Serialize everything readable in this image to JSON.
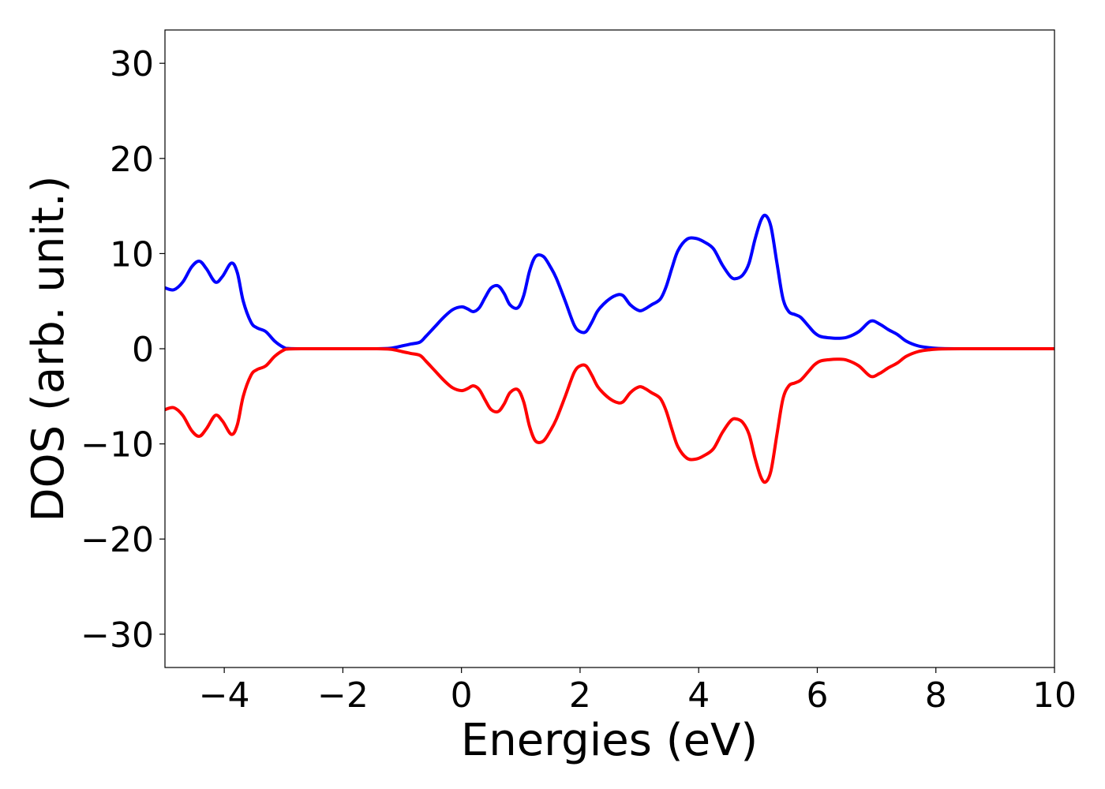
{
  "chart_data": {
    "type": "line",
    "title": "",
    "xlabel": "Energies (eV)",
    "ylabel": "DOS (arb. unit.)",
    "xlim": [
      -5,
      10
    ],
    "ylim": [
      -33.5,
      33.5
    ],
    "xticks": [
      -4,
      -2,
      0,
      2,
      4,
      6,
      8,
      10
    ],
    "xtick_labels": [
      "−4",
      "−2",
      "0",
      "2",
      "4",
      "6",
      "8",
      "10"
    ],
    "yticks": [
      30,
      20,
      10,
      0,
      -10,
      -20,
      -30
    ],
    "ytick_labels": [
      "30",
      "20",
      "10",
      "0",
      "−10",
      "−20",
      "−30"
    ],
    "grid": false,
    "legend": "none",
    "colors": {
      "spin_up": "#0000ff",
      "spin_down": "#ff0000",
      "axes": "#000000"
    },
    "series": [
      {
        "color": "#0000ff",
        "x": [
          -5.0,
          -4.85,
          -4.7,
          -4.55,
          -4.42,
          -4.3,
          -4.15,
          -4.03,
          -3.88,
          -3.78,
          -3.68,
          -3.55,
          -3.45,
          -3.3,
          -3.15,
          -3.0,
          -2.9,
          -2.5,
          -2.0,
          -1.5,
          -1.2,
          -1.0,
          -0.85,
          -0.7,
          -0.6,
          -0.45,
          -0.3,
          -0.15,
          0.0,
          0.1,
          0.2,
          0.3,
          0.4,
          0.5,
          0.62,
          0.72,
          0.82,
          0.95,
          1.05,
          1.15,
          1.25,
          1.38,
          1.5,
          1.6,
          1.75,
          1.9,
          2.0,
          2.1,
          2.2,
          2.3,
          2.45,
          2.6,
          2.72,
          2.85,
          3.0,
          3.1,
          3.2,
          3.35,
          3.45,
          3.55,
          3.65,
          3.8,
          3.95,
          4.1,
          4.25,
          4.4,
          4.55,
          4.65,
          4.75,
          4.85,
          4.95,
          5.05,
          5.13,
          5.22,
          5.32,
          5.42,
          5.52,
          5.62,
          5.72,
          5.85,
          5.95,
          6.05,
          6.2,
          6.35,
          6.5,
          6.7,
          6.9,
          7.05,
          7.2,
          7.35,
          7.5,
          7.7,
          7.9,
          8.1,
          8.5,
          9.0,
          9.5,
          10.0
        ],
        "y": [
          6.4,
          6.2,
          7.0,
          8.6,
          9.2,
          8.4,
          7.0,
          7.6,
          9.0,
          8.0,
          5.0,
          2.8,
          2.2,
          1.8,
          0.8,
          0.15,
          0.02,
          0.0,
          0.0,
          0.0,
          0.05,
          0.3,
          0.5,
          0.7,
          1.3,
          2.3,
          3.3,
          4.1,
          4.4,
          4.2,
          3.9,
          4.3,
          5.4,
          6.4,
          6.6,
          5.8,
          4.6,
          4.3,
          5.6,
          8.2,
          9.7,
          9.7,
          8.6,
          7.4,
          5.0,
          2.5,
          1.8,
          1.8,
          2.8,
          4.0,
          5.0,
          5.6,
          5.6,
          4.6,
          4.0,
          4.2,
          4.6,
          5.2,
          6.5,
          8.5,
          10.3,
          11.5,
          11.6,
          11.2,
          10.5,
          8.8,
          7.5,
          7.4,
          7.8,
          9.0,
          11.5,
          13.5,
          14.0,
          12.8,
          9.0,
          5.3,
          3.9,
          3.6,
          3.3,
          2.4,
          1.7,
          1.3,
          1.15,
          1.1,
          1.2,
          1.8,
          2.9,
          2.6,
          2.0,
          1.5,
          0.8,
          0.3,
          0.1,
          0.02,
          0.0,
          0.0,
          0.0,
          0.0
        ]
      },
      {
        "color": "#ff0000",
        "x": [
          -5.0,
          -4.85,
          -4.7,
          -4.55,
          -4.42,
          -4.3,
          -4.15,
          -4.03,
          -3.88,
          -3.78,
          -3.68,
          -3.55,
          -3.45,
          -3.3,
          -3.15,
          -3.0,
          -2.9,
          -2.5,
          -2.0,
          -1.5,
          -1.2,
          -1.0,
          -0.85,
          -0.7,
          -0.6,
          -0.45,
          -0.3,
          -0.15,
          0.0,
          0.1,
          0.2,
          0.3,
          0.4,
          0.5,
          0.62,
          0.72,
          0.82,
          0.95,
          1.05,
          1.15,
          1.25,
          1.38,
          1.5,
          1.6,
          1.75,
          1.9,
          2.0,
          2.1,
          2.2,
          2.3,
          2.45,
          2.6,
          2.72,
          2.85,
          3.0,
          3.1,
          3.2,
          3.35,
          3.45,
          3.55,
          3.65,
          3.8,
          3.95,
          4.1,
          4.25,
          4.4,
          4.55,
          4.65,
          4.75,
          4.85,
          4.95,
          5.05,
          5.13,
          5.22,
          5.32,
          5.42,
          5.52,
          5.62,
          5.72,
          5.85,
          5.95,
          6.05,
          6.2,
          6.35,
          6.5,
          6.7,
          6.9,
          7.05,
          7.2,
          7.35,
          7.5,
          7.7,
          7.9,
          8.1,
          8.5,
          9.0,
          9.5,
          10.0
        ],
        "y": [
          -6.4,
          -6.2,
          -7.0,
          -8.6,
          -9.2,
          -8.4,
          -7.0,
          -7.6,
          -9.0,
          -8.0,
          -5.0,
          -2.8,
          -2.2,
          -1.8,
          -0.8,
          -0.15,
          -0.02,
          0.0,
          0.0,
          0.0,
          -0.05,
          -0.3,
          -0.5,
          -0.7,
          -1.3,
          -2.3,
          -3.3,
          -4.1,
          -4.4,
          -4.2,
          -3.9,
          -4.3,
          -5.4,
          -6.4,
          -6.6,
          -5.8,
          -4.6,
          -4.3,
          -5.6,
          -8.2,
          -9.7,
          -9.7,
          -8.6,
          -7.4,
          -5.0,
          -2.5,
          -1.8,
          -1.8,
          -2.8,
          -4.0,
          -5.0,
          -5.6,
          -5.6,
          -4.6,
          -4.0,
          -4.2,
          -4.6,
          -5.2,
          -6.5,
          -8.5,
          -10.3,
          -11.5,
          -11.6,
          -11.2,
          -10.5,
          -8.8,
          -7.5,
          -7.4,
          -7.8,
          -9.0,
          -11.5,
          -13.5,
          -14.0,
          -12.8,
          -9.0,
          -5.3,
          -3.9,
          -3.6,
          -3.3,
          -2.4,
          -1.7,
          -1.3,
          -1.15,
          -1.1,
          -1.2,
          -1.8,
          -2.9,
          -2.6,
          -2.0,
          -1.5,
          -0.8,
          -0.3,
          -0.1,
          -0.02,
          0.0,
          0.0,
          0.0,
          0.0
        ]
      }
    ]
  }
}
